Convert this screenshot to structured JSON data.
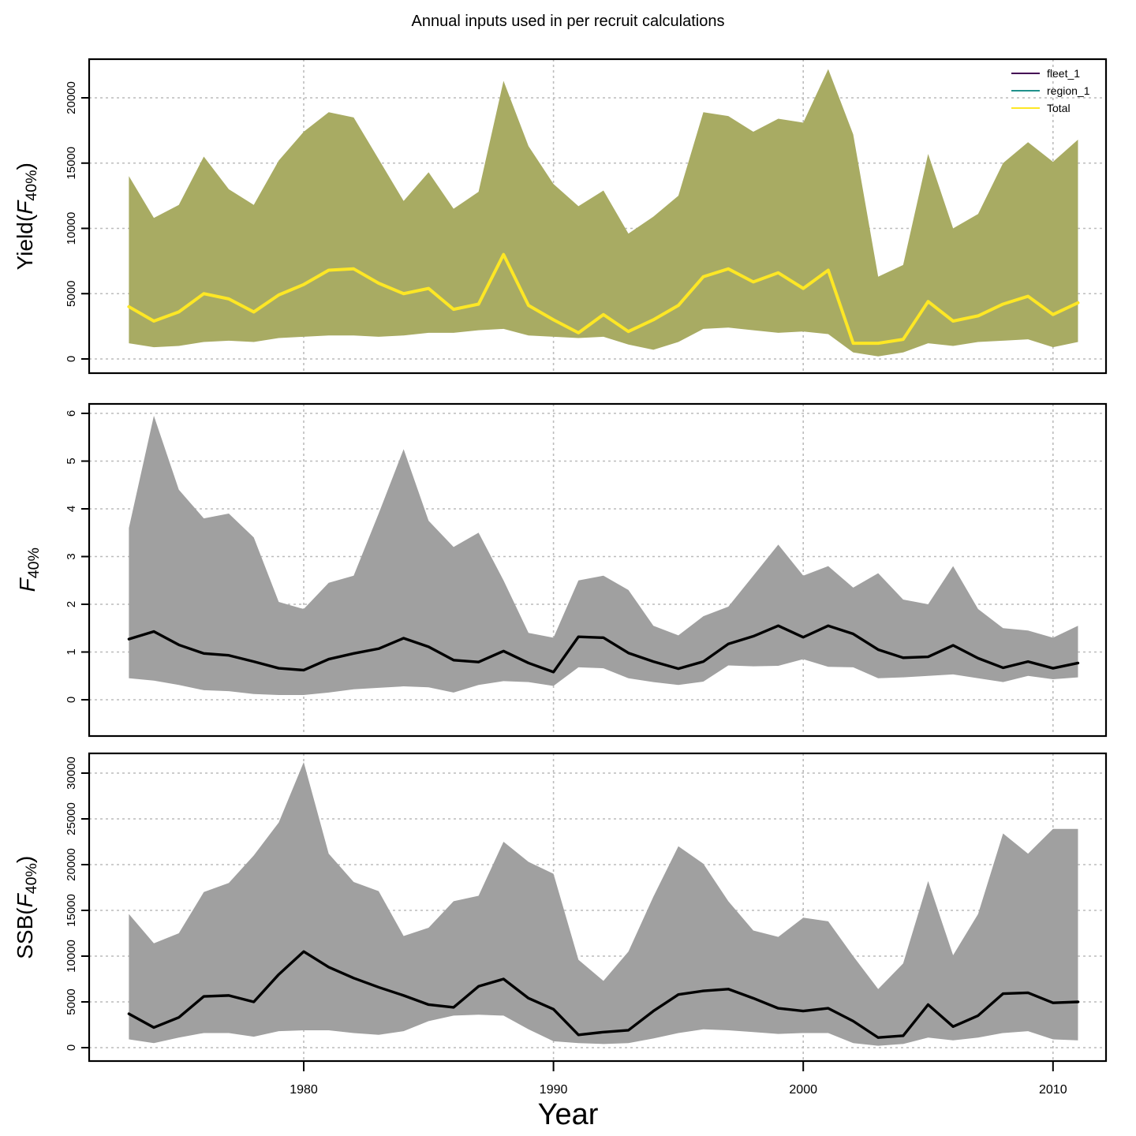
{
  "title": "Annual inputs used in per recruit calculations",
  "x_axis": {
    "label": "Year",
    "ticks": [
      1980,
      1990,
      2000,
      2010
    ]
  },
  "legend": [
    {
      "label": "fleet_1",
      "color": "#440154"
    },
    {
      "label": "region_1",
      "color": "#21918c"
    },
    {
      "label": "Total",
      "color": "#fde725"
    }
  ],
  "colors": {
    "yield_band": "#a8ab63",
    "yield_line": "#fde725",
    "grey_band": "#a0a0a0",
    "black_line": "#000000",
    "grid": "#bcbcbc",
    "frame": "#000000"
  },
  "chart_data": [
    {
      "type": "area",
      "name": "yield-per-recruit",
      "title_parts": {
        "pre": "Yield(",
        "f": "F",
        "sub": "40%",
        "post": ")"
      },
      "ylim": [
        0,
        20000
      ],
      "yticks": [
        0,
        5000,
        10000,
        15000,
        20000
      ],
      "band_color": "#a8ab63",
      "line_color": "#fde725",
      "grid": true,
      "legend_position": "top-right",
      "x": [
        1973,
        1974,
        1975,
        1976,
        1977,
        1978,
        1979,
        1980,
        1981,
        1982,
        1983,
        1984,
        1985,
        1986,
        1987,
        1988,
        1989,
        1990,
        1991,
        1992,
        1993,
        1994,
        1995,
        1996,
        1997,
        1998,
        1999,
        2000,
        2001,
        2002,
        2003,
        2004,
        2005,
        2006,
        2007,
        2008,
        2009,
        2010,
        2011
      ],
      "series": [
        {
          "name": "upper_ci",
          "values": [
            14000,
            10800,
            11800,
            15500,
            13000,
            11800,
            15200,
            17400,
            18900,
            18500,
            15300,
            12100,
            14300,
            11500,
            12800,
            21300,
            16300,
            13400,
            11700,
            12900,
            9600,
            10900,
            12500,
            18900,
            18600,
            17400,
            18400,
            18100,
            22200,
            17200,
            6300,
            7200,
            15700,
            10000,
            11100,
            15000,
            16600,
            15100,
            16800
          ]
        },
        {
          "name": "total_median",
          "values": [
            4000,
            2900,
            3600,
            5000,
            4600,
            3600,
            4900,
            5700,
            6800,
            6900,
            5800,
            5000,
            5400,
            3800,
            4200,
            8000,
            4100,
            3000,
            2000,
            3400,
            2100,
            3000,
            4100,
            6300,
            6900,
            5900,
            6600,
            5400,
            6800,
            1200,
            1200,
            1500,
            4400,
            2900,
            3300,
            4200,
            4800,
            3400,
            4300
          ]
        },
        {
          "name": "lower_ci",
          "values": [
            1200,
            900,
            1000,
            1300,
            1400,
            1300,
            1600,
            1700,
            1800,
            1800,
            1700,
            1800,
            2000,
            2000,
            2200,
            2300,
            1800,
            1700,
            1600,
            1700,
            1100,
            700,
            1300,
            2300,
            2400,
            2200,
            2000,
            2100,
            1900,
            500,
            200,
            500,
            1200,
            1000,
            1300,
            1400,
            1500,
            900,
            1300
          ]
        }
      ]
    },
    {
      "type": "area",
      "name": "f40-percent",
      "title_parts": {
        "pre": "",
        "f": "F",
        "sub": "40%",
        "post": ""
      },
      "ylim": [
        0,
        6
      ],
      "yticks": [
        0,
        1,
        2,
        3,
        4,
        5,
        6
      ],
      "band_color": "#a0a0a0",
      "line_color": "#000000",
      "grid": true,
      "x": [
        1973,
        1974,
        1975,
        1976,
        1977,
        1978,
        1979,
        1980,
        1981,
        1982,
        1983,
        1984,
        1985,
        1986,
        1987,
        1988,
        1989,
        1990,
        1991,
        1992,
        1993,
        1994,
        1995,
        1996,
        1997,
        1998,
        1999,
        2000,
        2001,
        2002,
        2003,
        2004,
        2005,
        2006,
        2007,
        2008,
        2009,
        2010,
        2011
      ],
      "series": [
        {
          "name": "upper_ci",
          "values": [
            3.6,
            5.95,
            4.4,
            3.8,
            3.9,
            3.4,
            2.05,
            1.9,
            2.45,
            2.6,
            3.9,
            5.25,
            3.75,
            3.2,
            3.5,
            2.5,
            1.4,
            1.3,
            2.5,
            2.6,
            2.3,
            1.55,
            1.35,
            1.75,
            1.95,
            2.6,
            3.25,
            2.6,
            2.8,
            2.35,
            2.65,
            2.1,
            2.0,
            2.8,
            1.9,
            1.5,
            1.45,
            1.3,
            1.55
          ]
        },
        {
          "name": "median",
          "values": [
            1.27,
            1.43,
            1.15,
            0.97,
            0.93,
            0.8,
            0.66,
            0.62,
            0.85,
            0.97,
            1.07,
            1.29,
            1.11,
            0.83,
            0.79,
            1.02,
            0.77,
            0.58,
            1.32,
            1.3,
            0.98,
            0.8,
            0.65,
            0.8,
            1.17,
            1.33,
            1.55,
            1.31,
            1.55,
            1.38,
            1.05,
            0.88,
            0.9,
            1.14,
            0.87,
            0.67,
            0.8,
            0.66,
            0.77
          ]
        },
        {
          "name": "lower_ci",
          "values": [
            0.45,
            0.4,
            0.31,
            0.2,
            0.18,
            0.12,
            0.1,
            0.1,
            0.15,
            0.22,
            0.25,
            0.28,
            0.26,
            0.15,
            0.31,
            0.39,
            0.37,
            0.29,
            0.68,
            0.66,
            0.45,
            0.37,
            0.31,
            0.38,
            0.72,
            0.7,
            0.71,
            0.85,
            0.69,
            0.68,
            0.45,
            0.47,
            0.5,
            0.53,
            0.45,
            0.37,
            0.5,
            0.43,
            0.47
          ]
        }
      ]
    },
    {
      "type": "area",
      "name": "ssb-per-recruit",
      "title_parts": {
        "pre": "SSB(",
        "f": "F",
        "sub": "40%",
        "post": ")"
      },
      "ylim": [
        0,
        30000
      ],
      "yticks": [
        0,
        5000,
        10000,
        15000,
        20000,
        25000,
        30000
      ],
      "band_color": "#a0a0a0",
      "line_color": "#000000",
      "grid": true,
      "x": [
        1973,
        1974,
        1975,
        1976,
        1977,
        1978,
        1979,
        1980,
        1981,
        1982,
        1983,
        1984,
        1985,
        1986,
        1987,
        1988,
        1989,
        1990,
        1991,
        1992,
        1993,
        1994,
        1995,
        1996,
        1997,
        1998,
        1999,
        2000,
        2001,
        2002,
        2003,
        2004,
        2005,
        2006,
        2007,
        2008,
        2009,
        2010,
        2011
      ],
      "series": [
        {
          "name": "upper_ci",
          "values": [
            14600,
            11400,
            12500,
            17000,
            18000,
            21000,
            24600,
            31200,
            21200,
            18100,
            17100,
            12200,
            13100,
            16000,
            16600,
            22500,
            20300,
            19000,
            9600,
            7300,
            10500,
            16500,
            22000,
            20100,
            16000,
            12800,
            12100,
            14200,
            13800,
            10000,
            6400,
            9200,
            18200,
            10100,
            14600,
            23400,
            21200,
            23900,
            23900
          ]
        },
        {
          "name": "median",
          "values": [
            3700,
            2200,
            3300,
            5600,
            5700,
            5000,
            8000,
            10500,
            8800,
            7600,
            6600,
            5700,
            4700,
            4400,
            6700,
            7500,
            5400,
            4200,
            1400,
            1700,
            1900,
            4000,
            5800,
            6200,
            6400,
            5400,
            4300,
            4000,
            4300,
            2900,
            1100,
            1300,
            4700,
            2300,
            3500,
            5900,
            6000,
            4900,
            5000
          ]
        },
        {
          "name": "lower_ci",
          "values": [
            900,
            500,
            1100,
            1600,
            1600,
            1200,
            1800,
            1900,
            1900,
            1600,
            1400,
            1800,
            2900,
            3500,
            3600,
            3500,
            2000,
            700,
            500,
            400,
            500,
            1000,
            1600,
            2000,
            1900,
            1700,
            1500,
            1600,
            1600,
            500,
            200,
            400,
            1100,
            800,
            1100,
            1600,
            1800,
            900,
            800
          ]
        }
      ]
    }
  ]
}
